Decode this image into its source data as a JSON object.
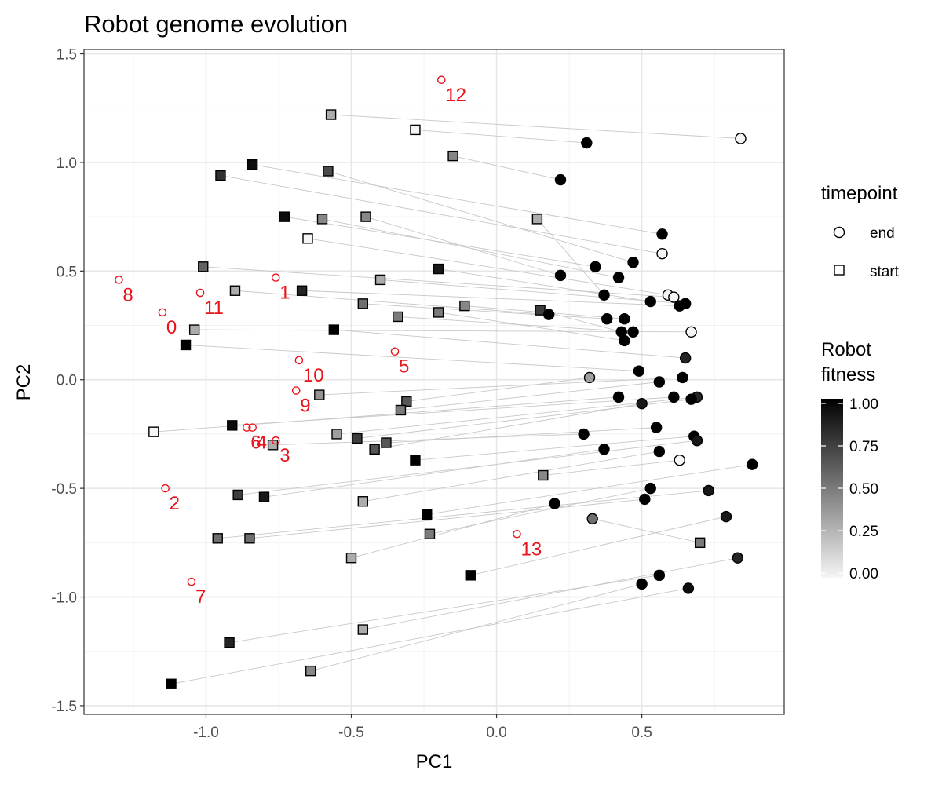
{
  "chart_data": {
    "type": "scatter",
    "title": "Robot genome evolution",
    "xlabel": "PC1",
    "ylabel": "PC2",
    "xlim": [
      -1.42,
      0.99
    ],
    "ylim": [
      -1.54,
      1.52
    ],
    "xticks": [
      -1.0,
      -0.5,
      0.0,
      0.5
    ],
    "xtick_labels": [
      "-1.0",
      "-0.5",
      "0.0",
      "0.5"
    ],
    "yticks": [
      -1.5,
      -1.0,
      -0.5,
      0.0,
      0.5,
      1.0,
      1.5
    ],
    "ytick_labels": [
      "-1.5",
      "-1.0",
      "-0.5",
      "0.0",
      "0.5",
      "1.0",
      "1.5"
    ],
    "grid": true,
    "legend_placement": "right",
    "legend_shape": {
      "title": "timepoint",
      "entries": [
        {
          "label": "end",
          "shape": "circle"
        },
        {
          "label": "start",
          "shape": "square"
        }
      ]
    },
    "legend_fill": {
      "title_lines": [
        "Robot",
        "fitness"
      ],
      "ticks": [
        1.0,
        0.75,
        0.5,
        0.25,
        0.0
      ],
      "tick_labels": [
        "1.00",
        "0.75",
        "0.50",
        "0.25",
        "0.00"
      ],
      "color_low": "#f5f5f5",
      "color_high": "#000000"
    },
    "start_points": [
      {
        "x": -0.57,
        "y": 1.22,
        "fitness": 0.3
      },
      {
        "x": -0.28,
        "y": 1.15,
        "fitness": 0.0
      },
      {
        "x": -0.15,
        "y": 1.03,
        "fitness": 0.45
      },
      {
        "x": -0.84,
        "y": 0.99,
        "fitness": 0.95
      },
      {
        "x": -0.95,
        "y": 0.94,
        "fitness": 0.8
      },
      {
        "x": -0.58,
        "y": 0.96,
        "fitness": 0.7
      },
      {
        "x": -0.73,
        "y": 0.75,
        "fitness": 0.95
      },
      {
        "x": -0.6,
        "y": 0.74,
        "fitness": 0.45
      },
      {
        "x": -0.45,
        "y": 0.75,
        "fitness": 0.45
      },
      {
        "x": 0.14,
        "y": 0.74,
        "fitness": 0.3
      },
      {
        "x": -0.65,
        "y": 0.65,
        "fitness": 0.0
      },
      {
        "x": -1.01,
        "y": 0.52,
        "fitness": 0.6
      },
      {
        "x": -0.2,
        "y": 0.51,
        "fitness": 0.9
      },
      {
        "x": -0.4,
        "y": 0.46,
        "fitness": 0.3
      },
      {
        "x": -0.67,
        "y": 0.41,
        "fitness": 0.85
      },
      {
        "x": -0.9,
        "y": 0.41,
        "fitness": 0.3
      },
      {
        "x": -0.46,
        "y": 0.35,
        "fitness": 0.55
      },
      {
        "x": -0.11,
        "y": 0.34,
        "fitness": 0.45
      },
      {
        "x": 0.15,
        "y": 0.32,
        "fitness": 0.75
      },
      {
        "x": -0.34,
        "y": 0.29,
        "fitness": 0.5
      },
      {
        "x": -0.2,
        "y": 0.31,
        "fitness": 0.5
      },
      {
        "x": -1.04,
        "y": 0.23,
        "fitness": 0.3
      },
      {
        "x": -0.56,
        "y": 0.23,
        "fitness": 1.0
      },
      {
        "x": -1.07,
        "y": 0.16,
        "fitness": 1.0
      },
      {
        "x": -0.61,
        "y": -0.07,
        "fitness": 0.4
      },
      {
        "x": -0.31,
        "y": -0.1,
        "fitness": 0.65
      },
      {
        "x": -0.33,
        "y": -0.14,
        "fitness": 0.5
      },
      {
        "x": -1.18,
        "y": -0.24,
        "fitness": 0.0
      },
      {
        "x": -0.91,
        "y": -0.21,
        "fitness": 0.95
      },
      {
        "x": -0.55,
        "y": -0.25,
        "fitness": 0.35
      },
      {
        "x": -0.48,
        "y": -0.27,
        "fitness": 0.75
      },
      {
        "x": -0.42,
        "y": -0.32,
        "fitness": 0.65
      },
      {
        "x": -0.38,
        "y": -0.29,
        "fitness": 0.65
      },
      {
        "x": -0.77,
        "y": -0.3,
        "fitness": 0.3
      },
      {
        "x": -0.28,
        "y": -0.37,
        "fitness": 1.0
      },
      {
        "x": -0.89,
        "y": -0.53,
        "fitness": 0.75
      },
      {
        "x": -0.8,
        "y": -0.54,
        "fitness": 0.9
      },
      {
        "x": -0.46,
        "y": -0.56,
        "fitness": 0.3
      },
      {
        "x": 0.16,
        "y": -0.44,
        "fitness": 0.45
      },
      {
        "x": -0.24,
        "y": -0.62,
        "fitness": 1.0
      },
      {
        "x": -0.23,
        "y": -0.71,
        "fitness": 0.5
      },
      {
        "x": -0.96,
        "y": -0.73,
        "fitness": 0.55
      },
      {
        "x": -0.85,
        "y": -0.73,
        "fitness": 0.55
      },
      {
        "x": -0.5,
        "y": -0.82,
        "fitness": 0.3
      },
      {
        "x": -0.09,
        "y": -0.9,
        "fitness": 1.0
      },
      {
        "x": 0.7,
        "y": -0.75,
        "fitness": 0.5
      },
      {
        "x": -0.46,
        "y": -1.15,
        "fitness": 0.3
      },
      {
        "x": -0.92,
        "y": -1.21,
        "fitness": 0.85
      },
      {
        "x": -0.64,
        "y": -1.34,
        "fitness": 0.45
      },
      {
        "x": -1.12,
        "y": -1.4,
        "fitness": 1.0
      }
    ],
    "end_points": [
      {
        "x": 0.84,
        "y": 1.11,
        "fitness": 0.0
      },
      {
        "x": 0.31,
        "y": 1.09,
        "fitness": 1.0
      },
      {
        "x": 0.22,
        "y": 0.92,
        "fitness": 1.0
      },
      {
        "x": 0.57,
        "y": 0.67,
        "fitness": 1.0
      },
      {
        "x": 0.57,
        "y": 0.58,
        "fitness": 0.0
      },
      {
        "x": 0.47,
        "y": 0.54,
        "fitness": 1.0
      },
      {
        "x": 0.34,
        "y": 0.52,
        "fitness": 1.0
      },
      {
        "x": 0.42,
        "y": 0.47,
        "fitness": 1.0
      },
      {
        "x": 0.22,
        "y": 0.48,
        "fitness": 1.0
      },
      {
        "x": 0.37,
        "y": 0.39,
        "fitness": 1.0
      },
      {
        "x": 0.59,
        "y": 0.39,
        "fitness": 0.0
      },
      {
        "x": 0.61,
        "y": 0.38,
        "fitness": 0.0
      },
      {
        "x": 0.53,
        "y": 0.36,
        "fitness": 1.0
      },
      {
        "x": 0.65,
        "y": 0.35,
        "fitness": 1.0
      },
      {
        "x": 0.63,
        "y": 0.34,
        "fitness": 1.0
      },
      {
        "x": 0.18,
        "y": 0.3,
        "fitness": 1.0
      },
      {
        "x": 0.38,
        "y": 0.28,
        "fitness": 1.0
      },
      {
        "x": 0.44,
        "y": 0.28,
        "fitness": 1.0
      },
      {
        "x": 0.43,
        "y": 0.22,
        "fitness": 1.0
      },
      {
        "x": 0.47,
        "y": 0.22,
        "fitness": 1.0
      },
      {
        "x": 0.44,
        "y": 0.18,
        "fitness": 1.0
      },
      {
        "x": 0.67,
        "y": 0.22,
        "fitness": 0.0
      },
      {
        "x": 0.65,
        "y": 0.1,
        "fitness": 0.85
      },
      {
        "x": 0.49,
        "y": 0.04,
        "fitness": 1.0
      },
      {
        "x": 0.64,
        "y": 0.01,
        "fitness": 1.0
      },
      {
        "x": 0.32,
        "y": 0.01,
        "fitness": 0.35
      },
      {
        "x": 0.56,
        "y": -0.01,
        "fitness": 1.0
      },
      {
        "x": 0.42,
        "y": -0.08,
        "fitness": 1.0
      },
      {
        "x": 0.61,
        "y": -0.08,
        "fitness": 1.0
      },
      {
        "x": 0.69,
        "y": -0.08,
        "fitness": 0.85
      },
      {
        "x": 0.67,
        "y": -0.09,
        "fitness": 1.0
      },
      {
        "x": 0.5,
        "y": -0.11,
        "fitness": 0.9
      },
      {
        "x": 0.55,
        "y": -0.22,
        "fitness": 1.0
      },
      {
        "x": 0.3,
        "y": -0.25,
        "fitness": 1.0
      },
      {
        "x": 0.68,
        "y": -0.26,
        "fitness": 1.0
      },
      {
        "x": 0.69,
        "y": -0.28,
        "fitness": 0.9
      },
      {
        "x": 0.37,
        "y": -0.32,
        "fitness": 1.0
      },
      {
        "x": 0.56,
        "y": -0.33,
        "fitness": 1.0
      },
      {
        "x": 0.63,
        "y": -0.37,
        "fitness": 0.0
      },
      {
        "x": 0.88,
        "y": -0.39,
        "fitness": 1.0
      },
      {
        "x": 0.53,
        "y": -0.5,
        "fitness": 1.0
      },
      {
        "x": 0.73,
        "y": -0.51,
        "fitness": 0.9
      },
      {
        "x": 0.51,
        "y": -0.55,
        "fitness": 1.0
      },
      {
        "x": 0.2,
        "y": -0.57,
        "fitness": 1.0
      },
      {
        "x": 0.79,
        "y": -0.63,
        "fitness": 0.9
      },
      {
        "x": 0.33,
        "y": -0.64,
        "fitness": 0.55
      },
      {
        "x": 0.83,
        "y": -0.82,
        "fitness": 0.85
      },
      {
        "x": 0.56,
        "y": -0.9,
        "fitness": 1.0
      },
      {
        "x": 0.5,
        "y": -0.94,
        "fitness": 1.0
      },
      {
        "x": 0.66,
        "y": -0.96,
        "fitness": 0.95
      }
    ],
    "annotations": [
      {
        "label": "12",
        "x": -0.19,
        "y": 1.38
      },
      {
        "label": "8",
        "x": -1.3,
        "y": 0.46
      },
      {
        "label": "1",
        "x": -0.76,
        "y": 0.47
      },
      {
        "label": "11",
        "x": -1.02,
        "y": 0.4
      },
      {
        "label": "0",
        "x": -1.15,
        "y": 0.31
      },
      {
        "label": "5",
        "x": -0.35,
        "y": 0.13
      },
      {
        "label": "10",
        "x": -0.68,
        "y": 0.09
      },
      {
        "label": "9",
        "x": -0.69,
        "y": -0.05
      },
      {
        "label": "6",
        "x": -0.86,
        "y": -0.22
      },
      {
        "label": "4",
        "x": -0.84,
        "y": -0.22
      },
      {
        "label": "3",
        "x": -0.76,
        "y": -0.28
      },
      {
        "label": "2",
        "x": -1.14,
        "y": -0.5
      },
      {
        "label": "13",
        "x": 0.07,
        "y": -0.71
      },
      {
        "label": "7",
        "x": -1.05,
        "y": -0.93
      }
    ],
    "colors": {
      "annotation": "#e8141b",
      "trajectory_line": "#c8c8c8",
      "grid_major": "#e6e6e6",
      "grid_minor": "#f2f2f2",
      "panel_border": "#333333"
    }
  }
}
